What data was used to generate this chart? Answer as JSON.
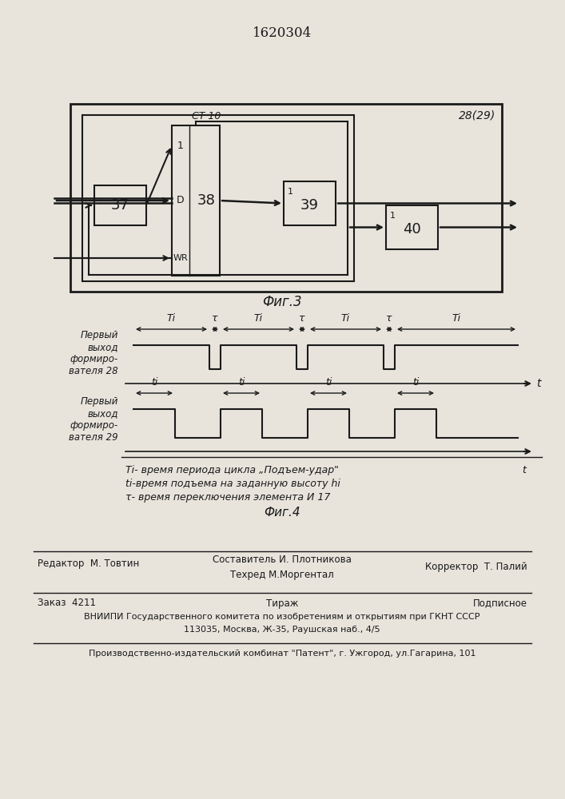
{
  "title": "1620304",
  "fig3_label": "Фиг.3",
  "fig4_label": "Фиг.4",
  "outer_box_label": "28(29)",
  "block37_label": "37",
  "block38_label": "38",
  "block38_top_label": "СТ 10",
  "block38_pin1": "1",
  "block38_pinD": "D",
  "block38_pinWR": "WR",
  "block39_label": "39",
  "block39_top": "1",
  "block40_label": "40",
  "block40_top": "1",
  "waveform1_label": "Первый\nвыход\nформиро-\nвателя 28",
  "waveform2_label": "Первый\nвыход\nформиро-\nвателя 29",
  "legend_line1": "Ti- время периода цикла „Подъем-удар\"",
  "legend_t_label": "t",
  "legend_line2": "ti-время подъема на заданную высоту hi",
  "legend_line3": "τ- время переключения элемента И 17",
  "editor_line": "Редактор  М. Товтин",
  "compiler_label": "Составитель И. Плотникова",
  "techred_line": "Техред М.Моргентал",
  "corrector_line": "Корректор  Т. Палий",
  "order_line": "Заказ  4211",
  "tirazh_line": "Тираж",
  "podpisnoe_line": "Подписное",
  "vniip_line": "ВНИИПИ Государственного комитета по изобретениям и открытиям при ГКНТ СССР",
  "address_line": "113035, Москва, Ж-35, Раушская наб., 4/5",
  "factory_line": "Производственно-издательский комбинат \"Патент\", г. Ужгород, ул.Гагарина, 101",
  "bg_color": "#e8e4dc",
  "line_color": "#1a1a1a",
  "text_color": "#1a1a1a"
}
